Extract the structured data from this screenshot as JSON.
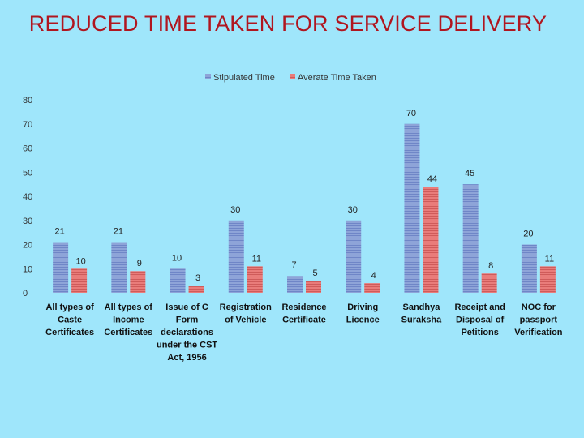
{
  "slide": {
    "title": "REDUCED TIME TAKEN FOR SERVICE DELIVERY"
  },
  "colors": {
    "background": "#9fe6fb",
    "title": "#b0161f",
    "stipulated": "#8ea4d8",
    "stipulated_stripe": "#6f86c7",
    "average": "#e97c7a",
    "average_stripe": "#cf5b5a"
  },
  "chart_data": {
    "type": "bar",
    "title": "",
    "xlabel": "",
    "ylabel": "",
    "ylim": [
      0,
      80
    ],
    "yticks": [
      0,
      10,
      20,
      30,
      40,
      50,
      60,
      70,
      80
    ],
    "grid": false,
    "legend": "top-center",
    "categories": [
      [
        "All types of",
        "Caste",
        "Certificates"
      ],
      [
        "All types of",
        "Income",
        "Certificates"
      ],
      [
        "Issue of C",
        "Form",
        "declarations",
        "under the CST",
        "Act, 1956"
      ],
      [
        "Registration",
        "of Vehicle"
      ],
      [
        "Residence",
        "Certificate"
      ],
      [
        "Driving",
        "Licence"
      ],
      [
        "Sandhya",
        "Suraksha"
      ],
      [
        "Receipt and",
        "Disposal of",
        "Petitions"
      ],
      [
        "NOC for",
        "passport",
        "Verification"
      ]
    ],
    "series": [
      {
        "name": "Stipulated Time",
        "values": [
          21,
          21,
          10,
          30,
          7,
          30,
          70,
          45,
          20
        ]
      },
      {
        "name": "Averate Time Taken",
        "values": [
          10,
          9,
          3,
          11,
          5,
          4,
          44,
          8,
          11
        ]
      }
    ]
  }
}
